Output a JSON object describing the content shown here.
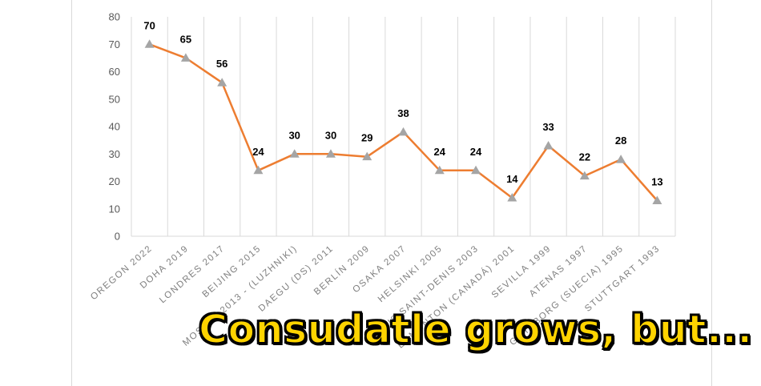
{
  "chart_data": {
    "type": "line",
    "categories": [
      "OREGON 2022",
      "DOHA 2019",
      "LONDRES 2017",
      "BEIJING 2015",
      "MOSKVA 2013 - (LUZHNIKI)",
      "DAEGU (DS) 2011",
      "BERLÍN 2009",
      "OSAKA 2007",
      "HELSINKI 2005",
      "PARIS SAINT-DENIS 2003",
      "EDMONTON (CANADÁ) 2001",
      "SEVILLA 1999",
      "ATENAS 1997",
      "GÖTEBORG (SUECIA) 1995",
      "STUTTGART 1993"
    ],
    "series": [
      {
        "values": [
          70,
          65,
          56,
          24,
          30,
          30,
          29,
          38,
          24,
          24,
          14,
          33,
          22,
          28,
          13
        ]
      }
    ],
    "data_labels": [
      "70",
      "65",
      "56",
      "24",
      "30",
      "30",
      "29",
      "38",
      "24",
      "24",
      "14",
      "33",
      "22",
      "28",
      "13"
    ],
    "y_ticks": [
      "0",
      "10",
      "20",
      "30",
      "40",
      "50",
      "60",
      "70",
      "80"
    ],
    "ylim": [
      0,
      80
    ],
    "grid": "vertical",
    "line_color": "#ed7d31",
    "marker_color": "#a5a5a5",
    "marker": "triangle"
  },
  "overlay": {
    "caption": "Consudatle grows, but..."
  }
}
